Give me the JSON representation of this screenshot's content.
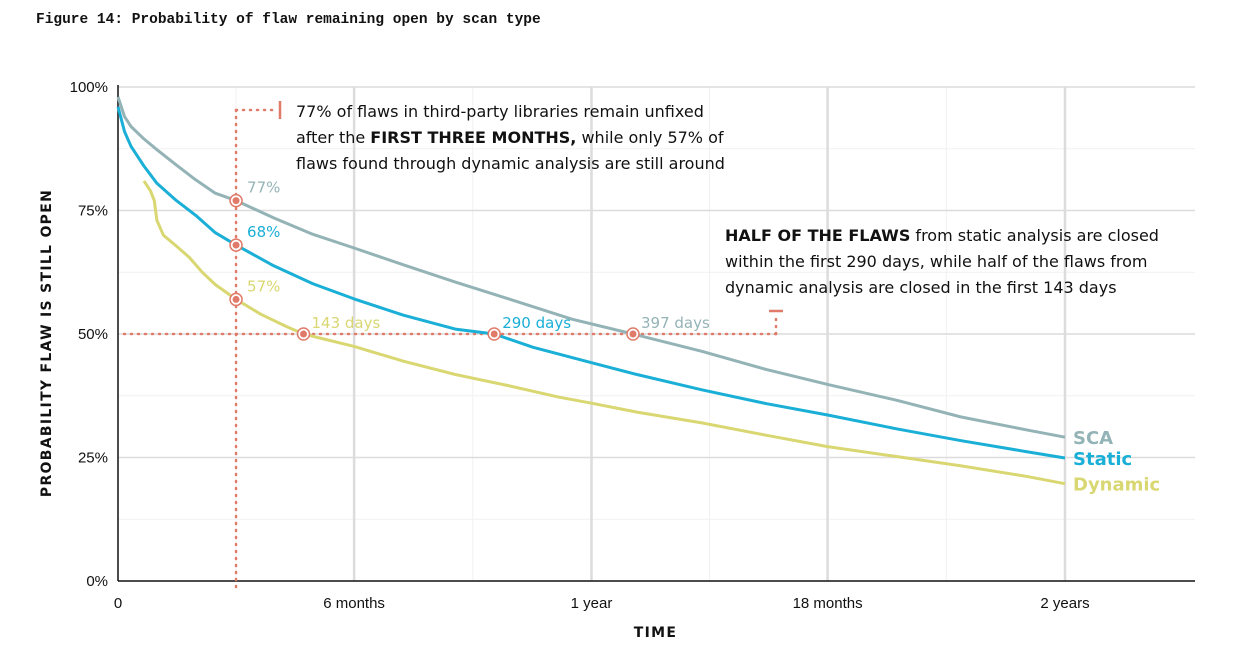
{
  "figure": {
    "title": "Figure 14: Probability of flaw remaining open by scan type"
  },
  "chart_data": {
    "type": "line",
    "title": "Figure 14: Probability of flaw remaining open by scan type",
    "xlabel": "TIME",
    "ylabel": "PROBABILITY FLAW IS STILL OPEN",
    "x_unit": "days",
    "xlim": [
      0,
      820
    ],
    "ylim": [
      0,
      100
    ],
    "x_ticks": [
      {
        "value": 0,
        "label": "0"
      },
      {
        "value": 182,
        "label": "6 months"
      },
      {
        "value": 365,
        "label": "1 year"
      },
      {
        "value": 547,
        "label": "18 months"
      },
      {
        "value": 730,
        "label": "2 years"
      }
    ],
    "y_ticks": [
      {
        "value": 0,
        "label": "0%"
      },
      {
        "value": 25,
        "label": "25%"
      },
      {
        "value": 50,
        "label": "50%"
      },
      {
        "value": 75,
        "label": "75%"
      },
      {
        "value": 100,
        "label": "100%"
      }
    ],
    "grid": true,
    "series": [
      {
        "name": "SCA",
        "color": "#94b3b6",
        "points": [
          [
            0,
            98
          ],
          [
            5,
            94
          ],
          [
            10,
            92
          ],
          [
            20,
            89.5
          ],
          [
            30,
            87.3
          ],
          [
            45,
            84.2
          ],
          [
            60,
            81.2
          ],
          [
            75,
            78.5
          ],
          [
            91,
            77
          ],
          [
            120,
            73.5
          ],
          [
            150,
            70.2
          ],
          [
            182,
            67.4
          ],
          [
            220,
            64
          ],
          [
            260,
            60.5
          ],
          [
            300,
            57.2
          ],
          [
            350,
            53
          ],
          [
            397,
            50
          ],
          [
            450,
            46.5
          ],
          [
            500,
            42.8
          ],
          [
            547,
            39.8
          ],
          [
            600,
            36.6
          ],
          [
            650,
            33.2
          ],
          [
            700,
            30.6
          ],
          [
            730,
            29.1
          ]
        ]
      },
      {
        "name": "Static",
        "color": "#1aafd6",
        "points": [
          [
            0,
            96
          ],
          [
            5,
            91
          ],
          [
            10,
            88
          ],
          [
            20,
            84
          ],
          [
            30,
            80.5
          ],
          [
            45,
            77
          ],
          [
            60,
            74
          ],
          [
            75,
            70.5
          ],
          [
            91,
            68
          ],
          [
            120,
            63.8
          ],
          [
            150,
            60.2
          ],
          [
            182,
            57.1
          ],
          [
            220,
            53.8
          ],
          [
            260,
            51
          ],
          [
            290,
            50
          ],
          [
            320,
            47.3
          ],
          [
            365,
            44.2
          ],
          [
            400,
            41.8
          ],
          [
            450,
            38.7
          ],
          [
            500,
            35.9
          ],
          [
            547,
            33.6
          ],
          [
            600,
            30.8
          ],
          [
            650,
            28.4
          ],
          [
            700,
            26.2
          ],
          [
            730,
            24.9
          ]
        ]
      },
      {
        "name": "Dynamic",
        "color": "#d9d771",
        "points": [
          [
            20,
            81
          ],
          [
            25,
            79
          ],
          [
            28,
            77
          ],
          [
            30,
            73
          ],
          [
            35,
            70
          ],
          [
            45,
            67.8
          ],
          [
            55,
            65.5
          ],
          [
            65,
            62.5
          ],
          [
            75,
            60
          ],
          [
            91,
            57
          ],
          [
            110,
            54
          ],
          [
            130,
            51.5
          ],
          [
            143,
            50
          ],
          [
            182,
            47.5
          ],
          [
            220,
            44.5
          ],
          [
            260,
            41.8
          ],
          [
            300,
            39.6
          ],
          [
            340,
            37.2
          ],
          [
            365,
            36
          ],
          [
            400,
            34.2
          ],
          [
            450,
            32
          ],
          [
            500,
            29.5
          ],
          [
            547,
            27.2
          ],
          [
            600,
            25.2
          ],
          [
            650,
            23.3
          ],
          [
            700,
            21.2
          ],
          [
            730,
            19.7
          ]
        ]
      }
    ],
    "point_labels": [
      {
        "text": "77%",
        "x": 91,
        "y": 77,
        "series": "SCA"
      },
      {
        "text": "68%",
        "x": 91,
        "y": 68,
        "series": "Static"
      },
      {
        "text": "57%",
        "x": 91,
        "y": 57,
        "series": "Dynamic"
      },
      {
        "text": "143 days",
        "x": 143,
        "y": 50,
        "series": "Dynamic"
      },
      {
        "text": "290 days",
        "x": 290,
        "y": 50,
        "series": "Static"
      },
      {
        "text": "397 days",
        "x": 397,
        "y": 50,
        "series": "SCA"
      }
    ],
    "reference_lines": {
      "x_three_months": 91,
      "y_half": 50
    },
    "annotations": [
      {
        "lines": [
          [
            {
              "t": "77% of flaws in third-party libraries remain unfixed",
              "b": false
            }
          ],
          [
            {
              "t": "after the ",
              "b": false
            },
            {
              "t": "FIRST THREE MONTHS,",
              "b": true
            },
            {
              "t": " while only 57% of",
              "b": false
            }
          ],
          [
            {
              "t": "flaws found through dynamic analysis are still around",
              "b": false
            }
          ]
        ]
      },
      {
        "lines": [
          [
            {
              "t": "HALF OF THE FLAWS",
              "b": true
            },
            {
              "t": " from static analysis are closed",
              "b": false
            }
          ],
          [
            {
              "t": "within the first 290 days, while half of the flaws from",
              "b": false
            }
          ],
          [
            {
              "t": "dynamic analysis are closed in the first 143 days",
              "b": false
            }
          ]
        ]
      }
    ],
    "accent_color": "#e07b6a"
  }
}
